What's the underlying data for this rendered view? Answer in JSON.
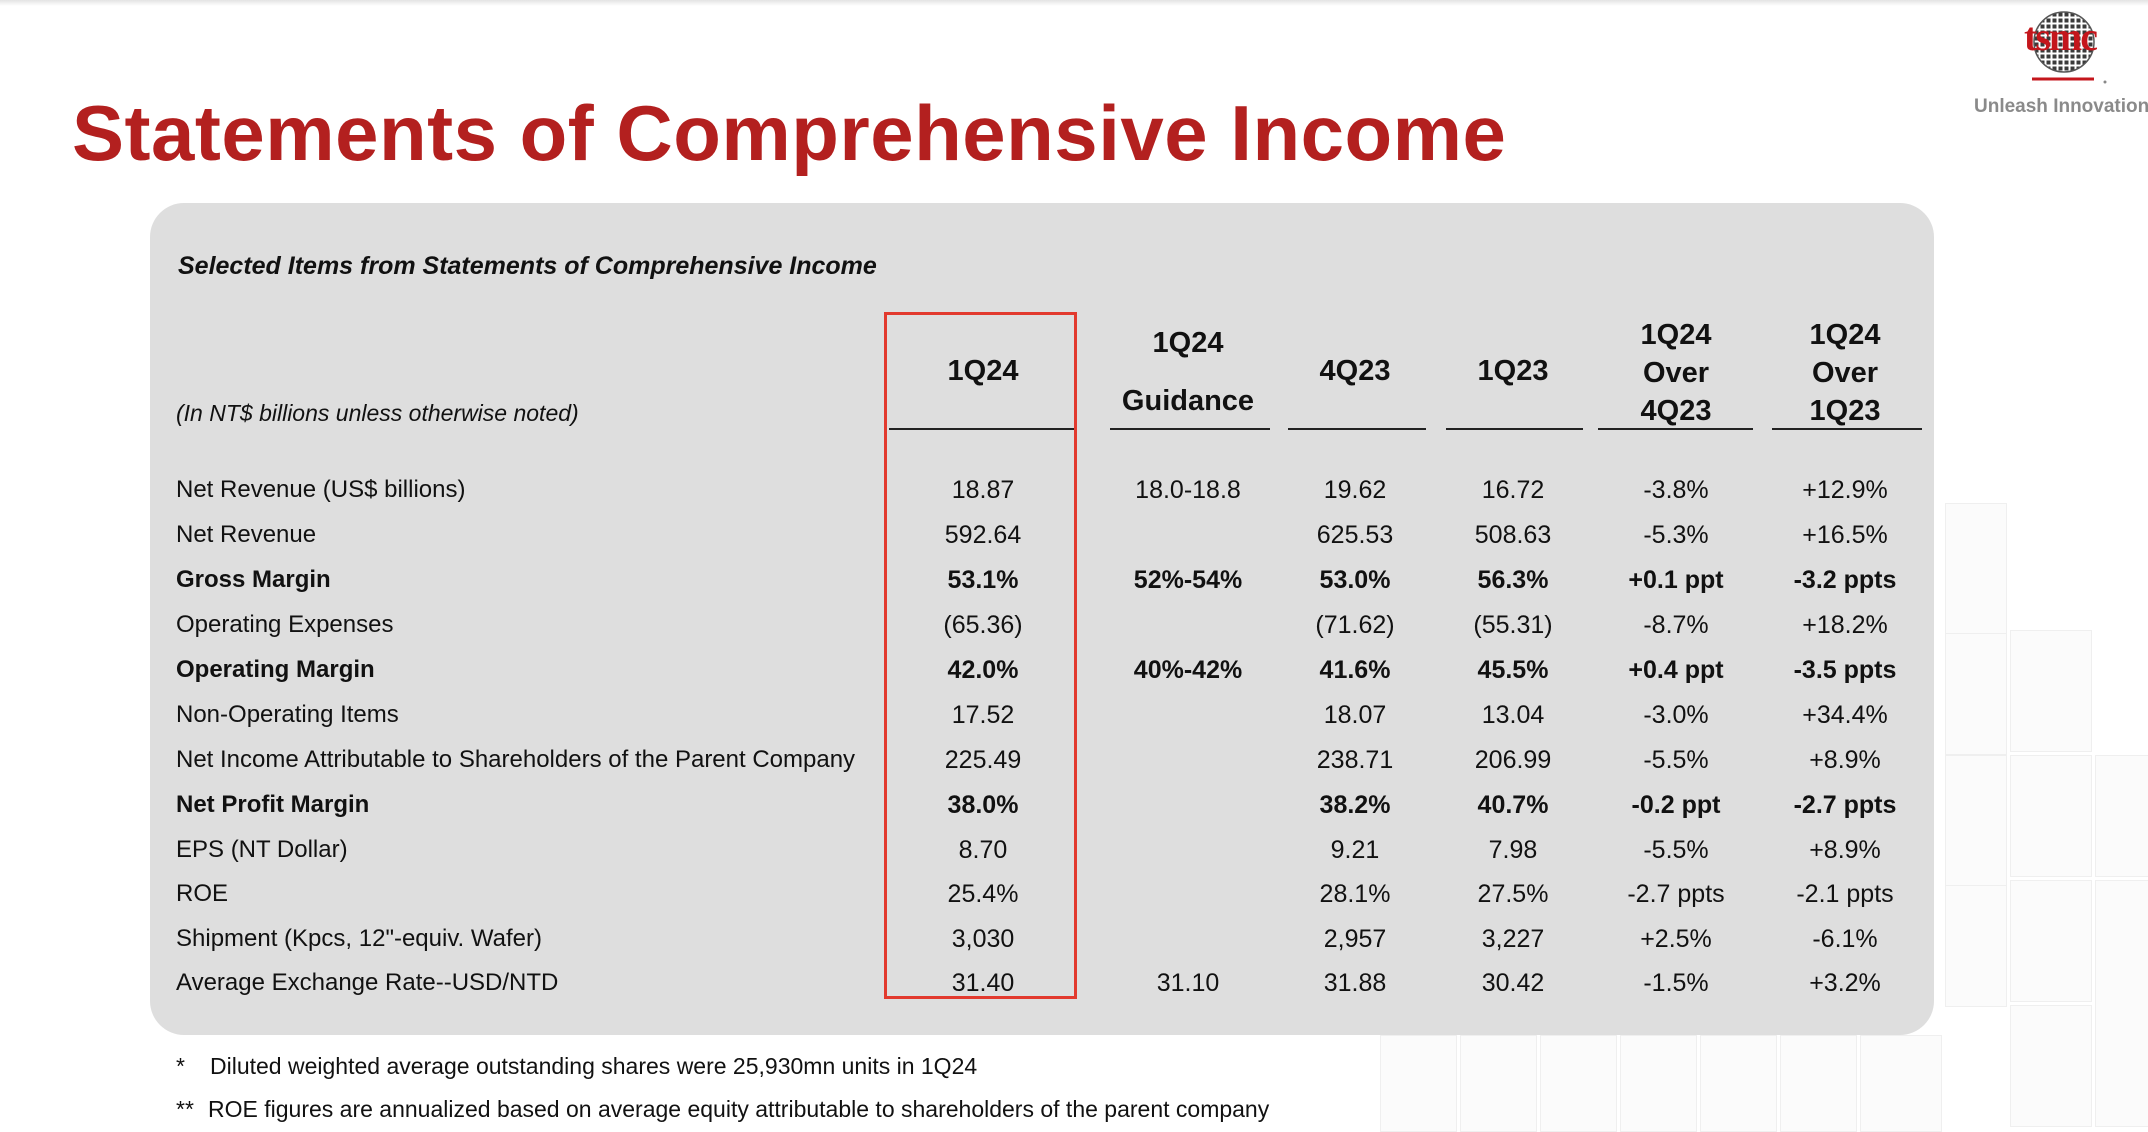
{
  "title": "Statements of Comprehensive Income",
  "brand": {
    "logo_text": "tsmc",
    "tagline": "Unleash Innovation",
    "title_color": "#b3201f",
    "highlight_color": "#e23a2e"
  },
  "panel": {
    "subtitle": "Selected Items from Statements of Comprehensive Income",
    "units_note": "(In NT$ billions unless otherwise noted)"
  },
  "columns": [
    {
      "key": "q1_24",
      "lines": [
        "1Q24"
      ]
    },
    {
      "key": "guidance",
      "lines": [
        "1Q24",
        "Guidance"
      ]
    },
    {
      "key": "q4_23",
      "lines": [
        "4Q23"
      ]
    },
    {
      "key": "q1_23",
      "lines": [
        "1Q23"
      ]
    },
    {
      "key": "qoq",
      "lines": [
        "1Q24",
        "Over",
        "4Q23"
      ]
    },
    {
      "key": "yoy",
      "lines": [
        "1Q24",
        "Over",
        "1Q23"
      ]
    }
  ],
  "rows": [
    {
      "label": "Net Revenue (US$ billions)",
      "bold": false,
      "values": [
        "18.87",
        "18.0-18.8",
        "19.62",
        "16.72",
        "-3.8%",
        "+12.9%"
      ]
    },
    {
      "label": "Net Revenue",
      "bold": false,
      "values": [
        "592.64",
        "",
        "625.53",
        "508.63",
        "-5.3%",
        "+16.5%"
      ]
    },
    {
      "label": "Gross Margin",
      "bold": true,
      "values": [
        "53.1%",
        "52%-54%",
        "53.0%",
        "56.3%",
        "+0.1 ppt",
        "-3.2 ppts"
      ]
    },
    {
      "label": "Operating Expenses",
      "bold": false,
      "values": [
        "(65.36)",
        "",
        "(71.62)",
        "(55.31)",
        "-8.7%",
        "+18.2%"
      ]
    },
    {
      "label": "Operating Margin",
      "bold": true,
      "values": [
        "42.0%",
        "40%-42%",
        "41.6%",
        "45.5%",
        "+0.4 ppt",
        "-3.5 ppts"
      ]
    },
    {
      "label": "Non-Operating Items",
      "bold": false,
      "values": [
        "17.52",
        "",
        "18.07",
        "13.04",
        "-3.0%",
        "+34.4%"
      ]
    },
    {
      "label": "Net Income Attributable to Shareholders of the Parent Company",
      "bold": false,
      "values": [
        "225.49",
        "",
        "238.71",
        "206.99",
        "-5.5%",
        "+8.9%"
      ]
    },
    {
      "label": "Net Profit Margin",
      "bold": true,
      "values": [
        "38.0%",
        "",
        "38.2%",
        "40.7%",
        "-0.2 ppt",
        "-2.7 ppts"
      ]
    },
    {
      "label": "EPS (NT Dollar)",
      "bold": false,
      "values": [
        "8.70",
        "",
        "9.21",
        "7.98",
        "-5.5%",
        "+8.9%"
      ]
    },
    {
      "label": "ROE",
      "bold": false,
      "values": [
        "25.4%",
        "",
        "28.1%",
        "27.5%",
        "-2.7 ppts",
        "-2.1 ppts"
      ]
    },
    {
      "label": "Shipment (Kpcs, 12\"-equiv. Wafer)",
      "bold": false,
      "values": [
        "3,030",
        "",
        "2,957",
        "3,227",
        "+2.5%",
        "-6.1%"
      ]
    },
    {
      "label": "Average Exchange Rate--USD/NTD",
      "bold": false,
      "values": [
        "31.40",
        "31.10",
        "31.88",
        "30.42",
        "-1.5%",
        "+3.2%"
      ]
    }
  ],
  "footnotes": [
    {
      "mark": "*",
      "text": "Diluted weighted average outstanding shares were 25,930mn units in 1Q24"
    },
    {
      "mark": "**",
      "text": "ROE figures are annualized based on average equity attributable to shareholders of the parent company"
    }
  ]
}
